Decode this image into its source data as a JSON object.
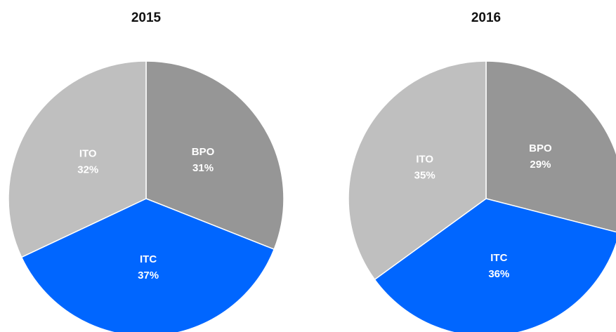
{
  "chart_data": [
    {
      "type": "pie",
      "title": "2015",
      "categories": [
        "BPO",
        "ITC",
        "ITO"
      ],
      "values": [
        31,
        37,
        32
      ],
      "value_labels": [
        "31%",
        "37%",
        "32%"
      ],
      "colors": [
        "#969696",
        "#0066ff",
        "#bfbfbf"
      ]
    },
    {
      "type": "pie",
      "title": "2016",
      "categories": [
        "BPO",
        "ITC",
        "ITO"
      ],
      "values": [
        29,
        36,
        35
      ],
      "value_labels": [
        "29%",
        "36%",
        "35%"
      ],
      "colors": [
        "#969696",
        "#0066ff",
        "#bfbfbf"
      ]
    }
  ]
}
